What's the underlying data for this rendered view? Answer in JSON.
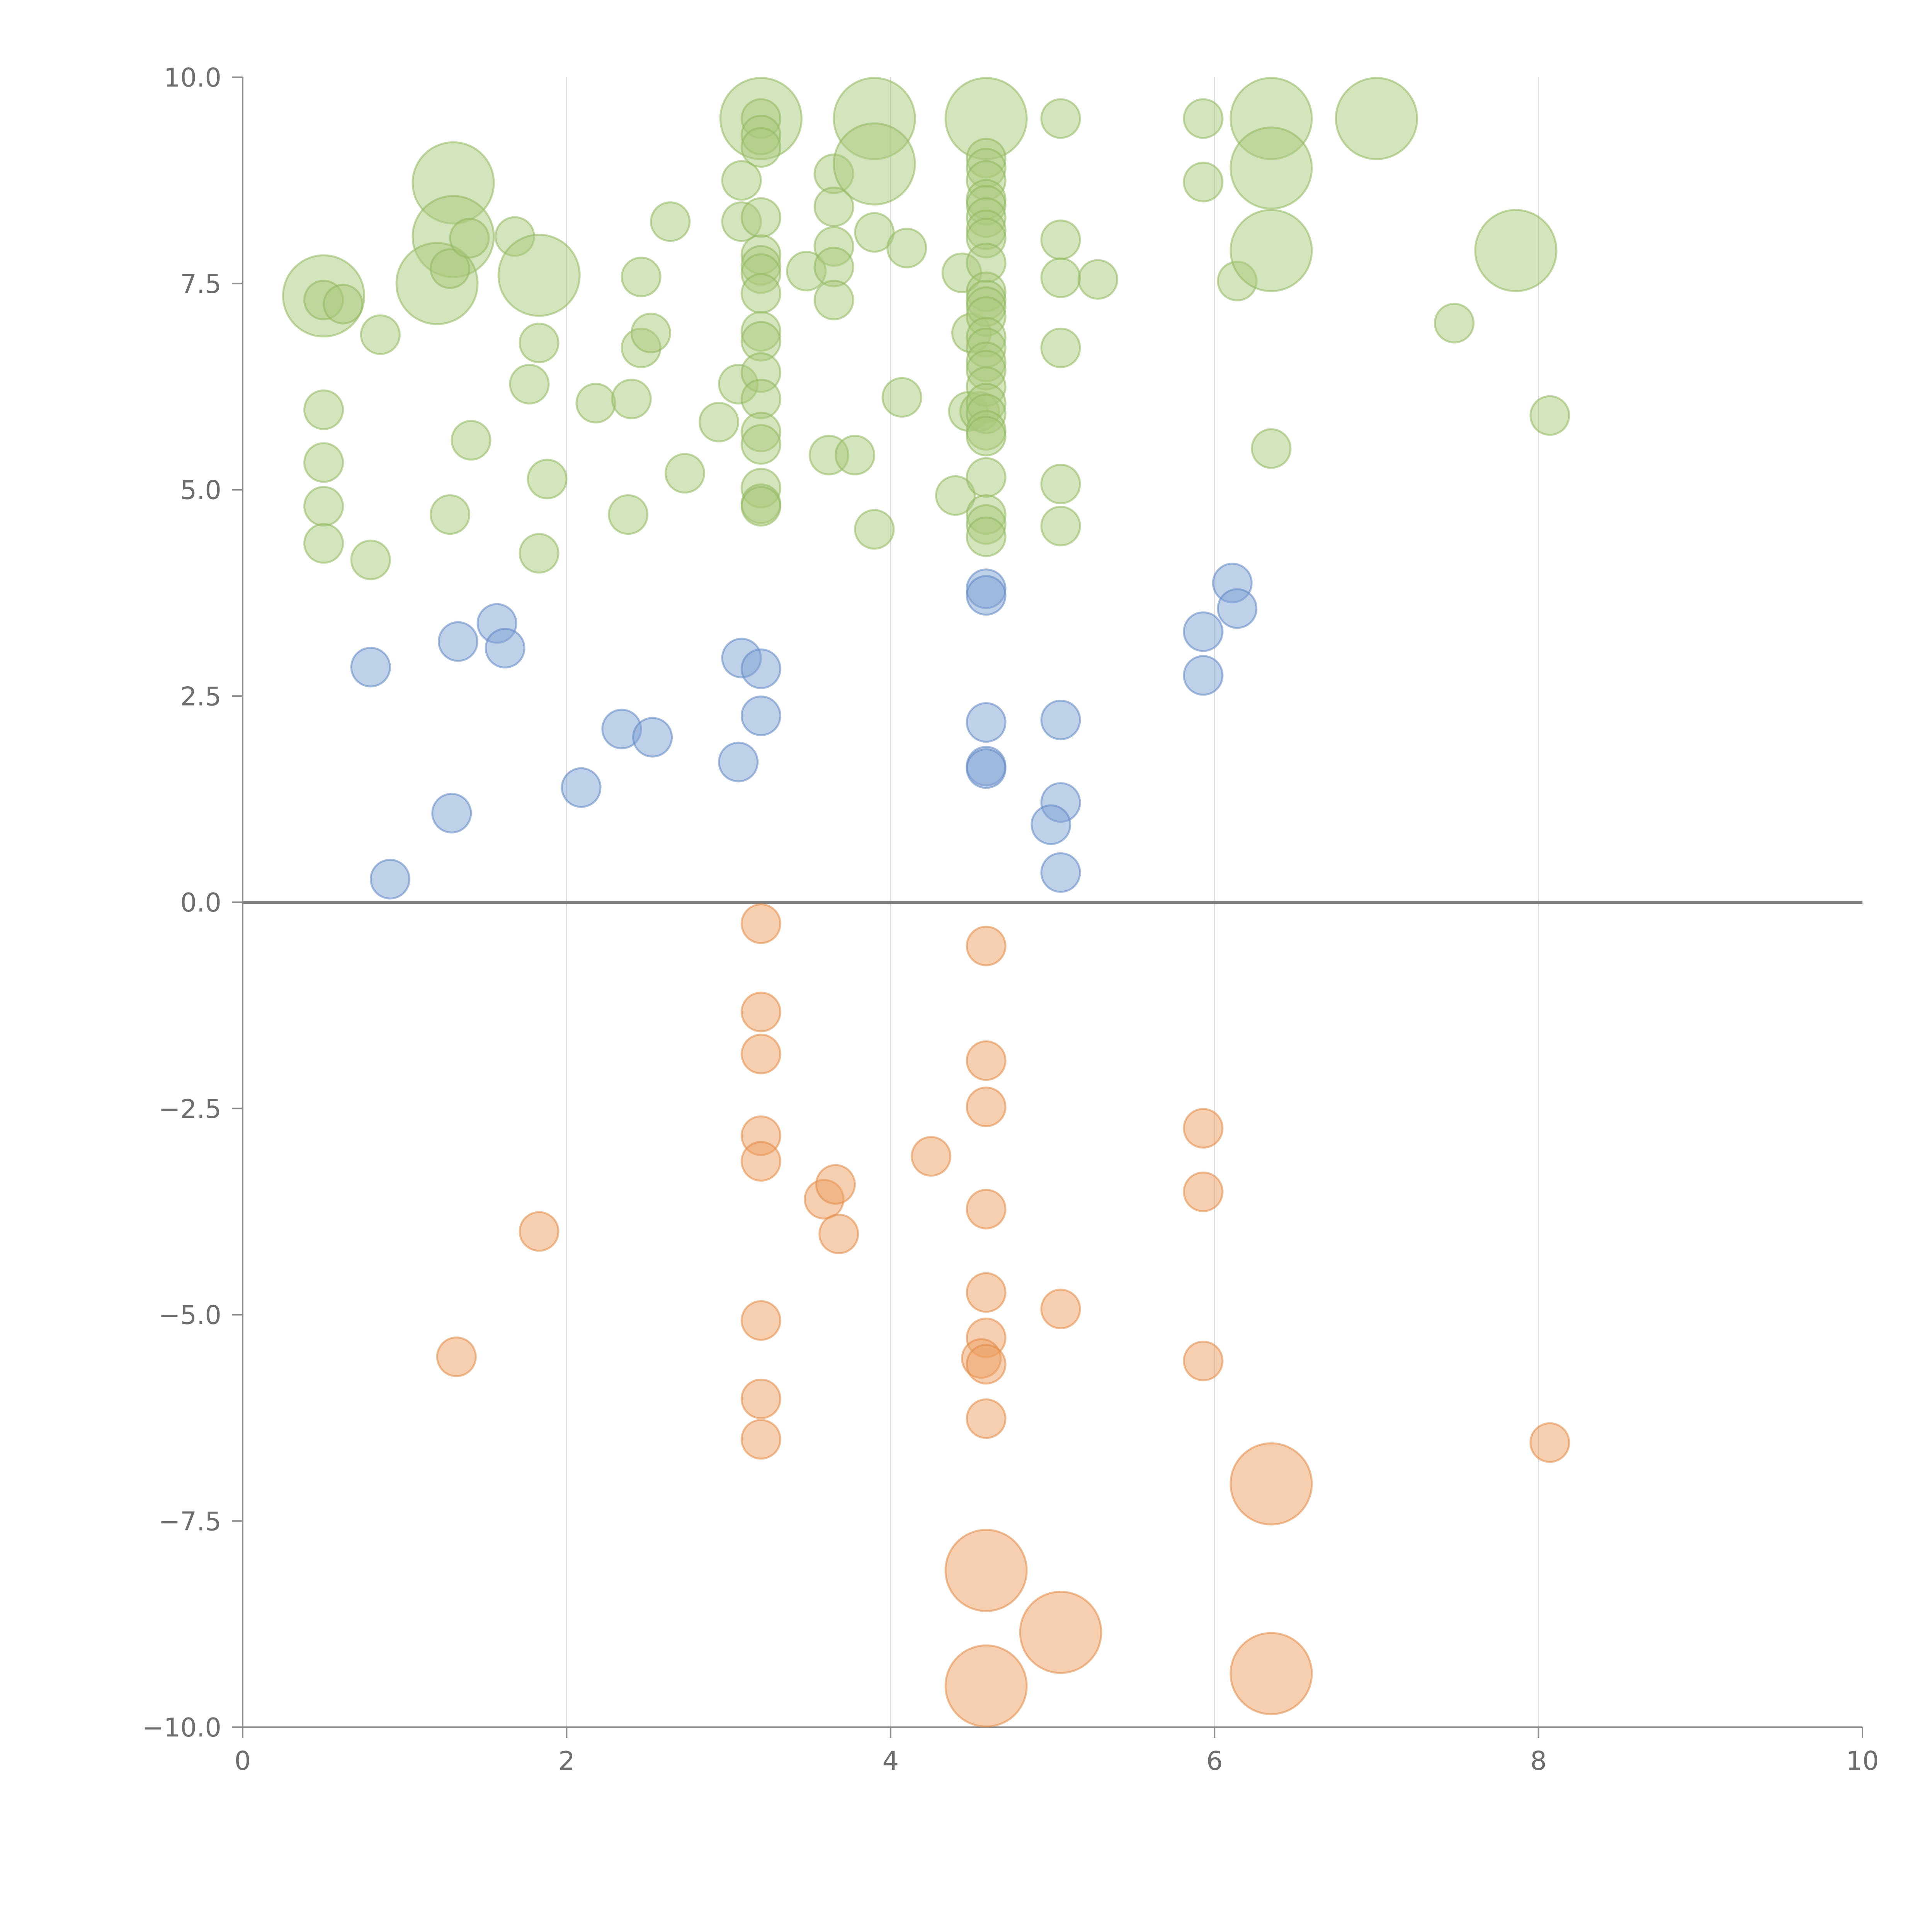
{
  "chart_data": {
    "type": "scatter",
    "title": "",
    "xlabel": "",
    "ylabel": "",
    "xlim": [
      0,
      10
    ],
    "ylim": [
      -10,
      10
    ],
    "x_ticks": [
      0,
      2,
      4,
      6,
      8,
      10
    ],
    "y_ticks": [
      10,
      7.5,
      5,
      2.5,
      0,
      -2.5,
      -5,
      -7.5,
      -10
    ],
    "x_tick_labels": [
      "0",
      "2",
      "4",
      "6",
      "8",
      "10"
    ],
    "y_tick_labels": [
      "10.0",
      "7.5",
      "5.0",
      "2.5",
      "0.0",
      "−2.5",
      "−5.0",
      "−7.5",
      "−10.0"
    ],
    "grid": {
      "x": true,
      "y": false
    },
    "zero_line": true,
    "legend": "none",
    "size_unit": "relative",
    "colors": {
      "green": "#a9c97c",
      "green_stroke": "#8fb85e",
      "blue": "#7fa2d4",
      "blue_stroke": "#5f86c2",
      "orange": "#ee9f62",
      "orange_stroke": "#e08a45"
    },
    "series": [
      {
        "color_key": "green",
        "points": [
          [
            0.5,
            7.35,
            2.1
          ],
          [
            0.5,
            7.3,
            1
          ],
          [
            0.62,
            7.25,
            1
          ],
          [
            0.85,
            6.88,
            1
          ],
          [
            0.5,
            5.97,
            1
          ],
          [
            0.5,
            5.33,
            1
          ],
          [
            0.5,
            4.8,
            1
          ],
          [
            0.5,
            4.35,
            1
          ],
          [
            0.79,
            4.15,
            1
          ],
          [
            1.3,
            8.72,
            2.1
          ],
          [
            1.3,
            8.07,
            2.1
          ],
          [
            1.2,
            7.5,
            2.1
          ],
          [
            1.28,
            7.68,
            1
          ],
          [
            1.4,
            8.05,
            1
          ],
          [
            1.68,
            8.07,
            1
          ],
          [
            1.83,
            7.6,
            2.1
          ],
          [
            1.83,
            6.78,
            1
          ],
          [
            1.77,
            6.28,
            1
          ],
          [
            1.88,
            5.13,
            1
          ],
          [
            1.28,
            4.7,
            1
          ],
          [
            1.41,
            5.6,
            1
          ],
          [
            1.83,
            4.23,
            1
          ],
          [
            2.18,
            6.05,
            1
          ],
          [
            2.4,
            6.1,
            1
          ],
          [
            2.46,
            6.72,
            1
          ],
          [
            2.52,
            6.9,
            1
          ],
          [
            2.46,
            7.58,
            1
          ],
          [
            2.64,
            8.25,
            1
          ],
          [
            2.73,
            5.2,
            1
          ],
          [
            2.38,
            4.7,
            1
          ],
          [
            2.94,
            5.82,
            1
          ],
          [
            3.06,
            6.28,
            1
          ],
          [
            3.08,
            8.25,
            1
          ],
          [
            3.08,
            8.75,
            1
          ],
          [
            3.2,
            9.5,
            2.1
          ],
          [
            3.2,
            9.5,
            1
          ],
          [
            3.2,
            9.3,
            1
          ],
          [
            3.2,
            9.15,
            1
          ],
          [
            3.2,
            8.3,
            1
          ],
          [
            3.2,
            7.85,
            1
          ],
          [
            3.2,
            7.72,
            1
          ],
          [
            3.2,
            7.62,
            1
          ],
          [
            3.2,
            7.38,
            1
          ],
          [
            3.2,
            6.92,
            1
          ],
          [
            3.2,
            6.8,
            1
          ],
          [
            3.2,
            6.42,
            1
          ],
          [
            3.2,
            6.1,
            1
          ],
          [
            3.2,
            5.7,
            1
          ],
          [
            3.2,
            5.55,
            1
          ],
          [
            3.2,
            5.02,
            1
          ],
          [
            3.2,
            4.83,
            1
          ],
          [
            3.2,
            4.8,
            1
          ],
          [
            3.48,
            7.65,
            1
          ],
          [
            3.65,
            8.83,
            1
          ],
          [
            3.65,
            8.43,
            1
          ],
          [
            3.65,
            7.95,
            1
          ],
          [
            3.65,
            7.7,
            1
          ],
          [
            3.65,
            7.3,
            1
          ],
          [
            3.62,
            5.42,
            1
          ],
          [
            3.78,
            5.42,
            1
          ],
          [
            3.9,
            9.5,
            2.1
          ],
          [
            3.9,
            8.95,
            2.1
          ],
          [
            3.9,
            8.12,
            1
          ],
          [
            4.1,
            7.93,
            1
          ],
          [
            4.07,
            6.12,
            1
          ],
          [
            3.9,
            4.52,
            1
          ],
          [
            4.44,
            7.63,
            1
          ],
          [
            4.5,
            6.9,
            1
          ],
          [
            4.48,
            5.95,
            1
          ],
          [
            4.4,
            4.93,
            1
          ],
          [
            4.55,
            5.95,
            1
          ],
          [
            4.59,
            9.5,
            2.1
          ],
          [
            4.59,
            9.02,
            1
          ],
          [
            4.59,
            8.9,
            1
          ],
          [
            4.59,
            8.75,
            1
          ],
          [
            4.59,
            8.52,
            1
          ],
          [
            4.59,
            8.45,
            1
          ],
          [
            4.59,
            8.3,
            1
          ],
          [
            4.59,
            8.15,
            1
          ],
          [
            4.59,
            8.05,
            1
          ],
          [
            4.59,
            7.75,
            1
          ],
          [
            4.59,
            7.4,
            1
          ],
          [
            4.59,
            7.3,
            1
          ],
          [
            4.59,
            7.22,
            1
          ],
          [
            4.59,
            7.1,
            1
          ],
          [
            4.59,
            6.85,
            1
          ],
          [
            4.59,
            6.72,
            1
          ],
          [
            4.59,
            6.55,
            1
          ],
          [
            4.59,
            6.45,
            1
          ],
          [
            4.59,
            6.25,
            1
          ],
          [
            4.59,
            6.05,
            1
          ],
          [
            4.59,
            5.92,
            1
          ],
          [
            4.59,
            5.72,
            1
          ],
          [
            4.59,
            5.65,
            1
          ],
          [
            4.59,
            5.15,
            1
          ],
          [
            4.59,
            4.7,
            1
          ],
          [
            4.59,
            4.58,
            1
          ],
          [
            4.59,
            4.43,
            1
          ],
          [
            5.05,
            9.5,
            1
          ],
          [
            5.05,
            8.03,
            1
          ],
          [
            5.05,
            7.57,
            1
          ],
          [
            5.28,
            7.55,
            1
          ],
          [
            5.05,
            6.72,
            1
          ],
          [
            5.05,
            5.07,
            1
          ],
          [
            5.05,
            4.56,
            1
          ],
          [
            5.93,
            9.5,
            1
          ],
          [
            5.93,
            8.73,
            1
          ],
          [
            6.14,
            7.53,
            1
          ],
          [
            6.35,
            9.5,
            2.1
          ],
          [
            6.35,
            8.9,
            2.1
          ],
          [
            6.35,
            7.9,
            2.1
          ],
          [
            6.35,
            5.5,
            1
          ],
          [
            7.0,
            9.5,
            2.1
          ],
          [
            7.48,
            7.02,
            1
          ],
          [
            7.86,
            7.9,
            2.1
          ],
          [
            8.07,
            5.9,
            1
          ]
        ]
      },
      {
        "color_key": "blue",
        "points": [
          [
            0.79,
            2.85,
            1
          ],
          [
            0.91,
            0.28,
            1
          ],
          [
            1.29,
            1.08,
            1
          ],
          [
            1.33,
            3.16,
            1
          ],
          [
            1.57,
            3.38,
            1
          ],
          [
            1.62,
            3.08,
            1
          ],
          [
            2.09,
            1.39,
            1
          ],
          [
            2.34,
            2.1,
            1
          ],
          [
            2.53,
            2.0,
            1
          ],
          [
            3.08,
            2.96,
            1
          ],
          [
            3.06,
            1.7,
            1
          ],
          [
            3.2,
            2.83,
            1
          ],
          [
            3.2,
            2.26,
            1
          ],
          [
            4.59,
            3.8,
            1
          ],
          [
            4.59,
            3.72,
            1
          ],
          [
            4.59,
            2.18,
            1
          ],
          [
            4.59,
            1.65,
            1
          ],
          [
            4.59,
            1.62,
            1
          ],
          [
            5.05,
            2.21,
            1
          ],
          [
            5.05,
            1.21,
            1
          ],
          [
            4.99,
            0.94,
            1
          ],
          [
            5.05,
            0.36,
            1
          ],
          [
            5.93,
            3.28,
            1
          ],
          [
            5.93,
            2.75,
            1
          ],
          [
            6.11,
            3.87,
            1
          ],
          [
            6.14,
            3.56,
            1
          ]
        ]
      },
      {
        "color_key": "orange",
        "points": [
          [
            1.32,
            -5.51,
            1
          ],
          [
            1.83,
            -3.99,
            1
          ],
          [
            3.2,
            -0.26,
            1
          ],
          [
            3.2,
            -1.33,
            1
          ],
          [
            3.2,
            -1.84,
            1
          ],
          [
            3.2,
            -2.83,
            1
          ],
          [
            3.2,
            -3.14,
            1
          ],
          [
            3.2,
            -5.07,
            1
          ],
          [
            3.2,
            -6.02,
            1
          ],
          [
            3.2,
            -6.51,
            1
          ],
          [
            3.59,
            -3.6,
            1
          ],
          [
            3.66,
            -3.42,
            1
          ],
          [
            3.68,
            -4.02,
            1
          ],
          [
            4.25,
            -3.08,
            1
          ],
          [
            4.59,
            -0.53,
            1
          ],
          [
            4.59,
            -1.92,
            1
          ],
          [
            4.59,
            -2.48,
            1
          ],
          [
            4.59,
            -3.72,
            1
          ],
          [
            4.59,
            -4.73,
            1
          ],
          [
            4.59,
            -5.28,
            1
          ],
          [
            4.56,
            -5.53,
            1
          ],
          [
            4.59,
            -5.6,
            1
          ],
          [
            4.59,
            -6.26,
            1
          ],
          [
            4.59,
            -8.1,
            2.1
          ],
          [
            4.59,
            -9.5,
            2.1
          ],
          [
            5.05,
            -4.93,
            1
          ],
          [
            5.05,
            -8.85,
            2.1
          ],
          [
            5.93,
            -2.74,
            1
          ],
          [
            5.93,
            -3.51,
            1
          ],
          [
            5.93,
            -5.56,
            1
          ],
          [
            6.35,
            -7.05,
            2.1
          ],
          [
            6.35,
            -9.35,
            2.1
          ],
          [
            8.07,
            -6.55,
            1
          ]
        ]
      }
    ]
  }
}
